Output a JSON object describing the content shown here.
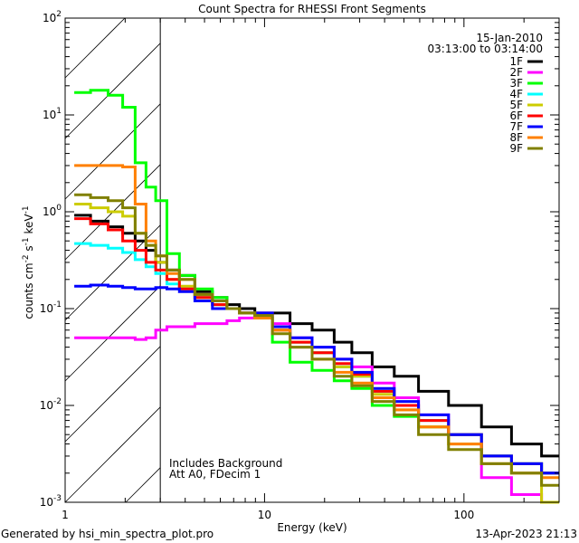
{
  "chart_data": {
    "type": "line",
    "title": "Count Spectra for RHESSI Front Segments",
    "xlabel": "Energy (keV)",
    "ylabel": {
      "base": "counts cm",
      "exp1": "-2",
      "mid": " s",
      "exp2": "-1",
      "mid2": " keV",
      "exp3": "-1"
    },
    "xscale": "log",
    "yscale": "log",
    "xlim": [
      1,
      300
    ],
    "ylim": [
      0.001,
      100
    ],
    "xtick_labels": [
      {
        "value": 1,
        "label": "1"
      },
      {
        "value": 10,
        "label": "10"
      },
      {
        "value": 100,
        "label": "100"
      }
    ],
    "ytick_base": "10",
    "ytick_exponents": [
      "-3",
      "-2",
      "-1",
      "0",
      "1",
      "2"
    ],
    "hatched_region_below_keV": 3,
    "date": "15-Jan-2010",
    "time_range": "03:13:00 to 03:14:00",
    "annotations": [
      "Includes Background",
      "Att A0, FDecim 1"
    ],
    "legend_position": "top-right",
    "energy": [
      1.2,
      1.5,
      1.8,
      2.1,
      2.4,
      2.7,
      3,
      3.5,
      4,
      5,
      6,
      7,
      8,
      10,
      12,
      15,
      20,
      25,
      30,
      40,
      50,
      70,
      100,
      150,
      200,
      300
    ],
    "series": [
      {
        "name": "1F",
        "color": "#000000",
        "values": [
          0.92,
          0.8,
          0.7,
          0.6,
          0.5,
          0.4,
          0.3,
          0.25,
          0.22,
          0.15,
          0.13,
          0.11,
          0.1,
          0.09,
          0.09,
          0.07,
          0.06,
          0.045,
          0.035,
          0.025,
          0.02,
          0.014,
          0.01,
          0.006,
          0.004,
          0.003
        ]
      },
      {
        "name": "2F",
        "color": "#ff00ff",
        "values": [
          0.05,
          0.05,
          0.05,
          0.05,
          0.048,
          0.05,
          0.06,
          0.065,
          0.065,
          0.07,
          0.07,
          0.075,
          0.08,
          0.09,
          0.07,
          0.05,
          0.04,
          0.03,
          0.025,
          0.017,
          0.012,
          0.008,
          0.005,
          0.0018,
          0.0012,
          0.001
        ]
      },
      {
        "name": "3F",
        "color": "#00ff00",
        "values": [
          17,
          18,
          16,
          12,
          3.2,
          1.8,
          1.3,
          0.37,
          0.22,
          0.16,
          0.13,
          0.1,
          0.09,
          0.08,
          0.045,
          0.028,
          0.023,
          0.018,
          0.015,
          0.01,
          0.0077,
          0.006,
          0.005,
          0.003,
          0.0025,
          0.002
        ]
      },
      {
        "name": "4F",
        "color": "#00ffff",
        "values": [
          0.47,
          0.45,
          0.42,
          0.38,
          0.32,
          0.27,
          0.23,
          0.18,
          0.16,
          0.13,
          0.11,
          0.1,
          0.09,
          0.08,
          0.06,
          0.045,
          0.035,
          0.025,
          0.02,
          0.014,
          0.01,
          0.007,
          0.005,
          0.003,
          0.0025,
          0.002
        ]
      },
      {
        "name": "5F",
        "color": "#cccc00",
        "values": [
          1.2,
          1.1,
          1.0,
          0.9,
          0.6,
          0.45,
          0.3,
          0.2,
          0.17,
          0.13,
          0.11,
          0.1,
          0.09,
          0.08,
          0.06,
          0.045,
          0.035,
          0.025,
          0.02,
          0.013,
          0.009,
          0.006,
          0.004,
          0.0025,
          0.002,
          0.001
        ]
      },
      {
        "name": "6F",
        "color": "#ff0000",
        "values": [
          0.85,
          0.75,
          0.65,
          0.5,
          0.4,
          0.3,
          0.25,
          0.2,
          0.16,
          0.13,
          0.11,
          0.1,
          0.09,
          0.085,
          0.06,
          0.045,
          0.035,
          0.027,
          0.021,
          0.014,
          0.01,
          0.007,
          0.005,
          0.003,
          0.0025,
          0.002
        ]
      },
      {
        "name": "7F",
        "color": "#0000ff",
        "values": [
          0.17,
          0.175,
          0.17,
          0.165,
          0.16,
          0.16,
          0.165,
          0.16,
          0.15,
          0.12,
          0.1,
          0.1,
          0.09,
          0.09,
          0.065,
          0.05,
          0.04,
          0.03,
          0.022,
          0.015,
          0.011,
          0.008,
          0.005,
          0.003,
          0.0025,
          0.002
        ]
      },
      {
        "name": "8F",
        "color": "#ff8000",
        "values": [
          3,
          3,
          3,
          2.9,
          1.2,
          0.5,
          0.35,
          0.23,
          0.2,
          0.14,
          0.12,
          0.1,
          0.09,
          0.08,
          0.06,
          0.04,
          0.03,
          0.022,
          0.017,
          0.012,
          0.009,
          0.006,
          0.004,
          0.0025,
          0.002,
          0.0018
        ]
      },
      {
        "name": "9F",
        "color": "#808000",
        "values": [
          1.5,
          1.4,
          1.3,
          1.1,
          0.6,
          0.45,
          0.35,
          0.25,
          0.2,
          0.14,
          0.12,
          0.1,
          0.09,
          0.085,
          0.055,
          0.04,
          0.03,
          0.02,
          0.016,
          0.011,
          0.008,
          0.005,
          0.0035,
          0.0025,
          0.002,
          0.0015
        ]
      }
    ]
  },
  "footer": {
    "generated_by": "Generated by hsi_min_spectra_plot.pro",
    "timestamp": "13-Apr-2023 21:13"
  }
}
